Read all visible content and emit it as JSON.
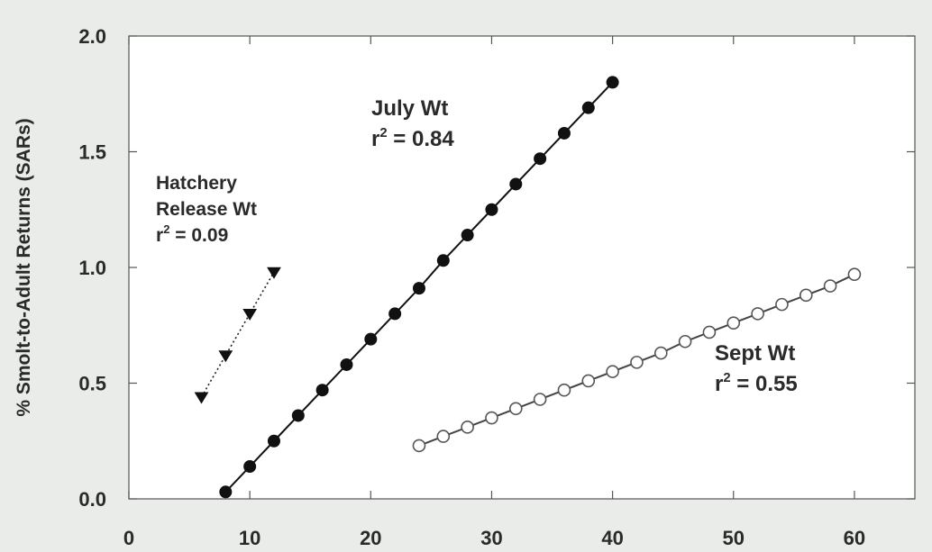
{
  "chart_data": {
    "type": "scatter",
    "title": "",
    "xlabel": "",
    "ylabel": "% Smolt-to-Adult Returns (SARs)",
    "xlim": [
      0,
      65
    ],
    "ylim": [
      0,
      2.0
    ],
    "x_ticks": [
      0,
      10,
      20,
      30,
      40,
      50,
      60
    ],
    "x_tick_labels": [
      "0",
      "10",
      "20",
      "30",
      "40",
      "50",
      "60"
    ],
    "y_ticks": [
      0.0,
      0.5,
      1.0,
      1.5,
      2.0
    ],
    "y_tick_labels": [
      "0.0",
      "0.5",
      "1.0",
      "1.5",
      "2.0"
    ],
    "grid": false,
    "series": [
      {
        "name": "Hatchery Release Wt",
        "label_lines": [
          "Hatchery",
          "Release Wt"
        ],
        "r2_value": "0.09",
        "marker": "triangle-down",
        "line_style": "dotted",
        "color": "#222222",
        "x": [
          6,
          8,
          10,
          12
        ],
        "y": [
          0.44,
          0.62,
          0.8,
          0.98
        ]
      },
      {
        "name": "July Wt",
        "label_lines": [
          "July Wt"
        ],
        "r2_value": "0.84",
        "marker": "filled-circle",
        "line_style": "solid",
        "color": "#111111",
        "x": [
          8,
          10,
          12,
          14,
          16,
          18,
          20,
          22,
          24,
          26,
          28,
          30,
          32,
          34,
          36,
          38,
          40
        ],
        "y": [
          0.03,
          0.14,
          0.25,
          0.36,
          0.47,
          0.58,
          0.69,
          0.8,
          0.91,
          1.03,
          1.14,
          1.25,
          1.36,
          1.47,
          1.58,
          1.69,
          1.8
        ]
      },
      {
        "name": "Sept Wt",
        "label_lines": [
          "Sept Wt"
        ],
        "r2_value": "0.55",
        "marker": "open-circle",
        "line_style": "solid",
        "color": "#444444",
        "x": [
          24,
          26,
          28,
          30,
          32,
          34,
          36,
          38,
          40,
          42,
          44,
          46,
          48,
          50,
          52,
          54,
          56,
          58,
          60
        ],
        "y": [
          0.23,
          0.27,
          0.31,
          0.35,
          0.39,
          0.43,
          0.47,
          0.51,
          0.55,
          0.59,
          0.63,
          0.68,
          0.72,
          0.76,
          0.8,
          0.84,
          0.88,
          0.92,
          0.97
        ]
      }
    ]
  }
}
